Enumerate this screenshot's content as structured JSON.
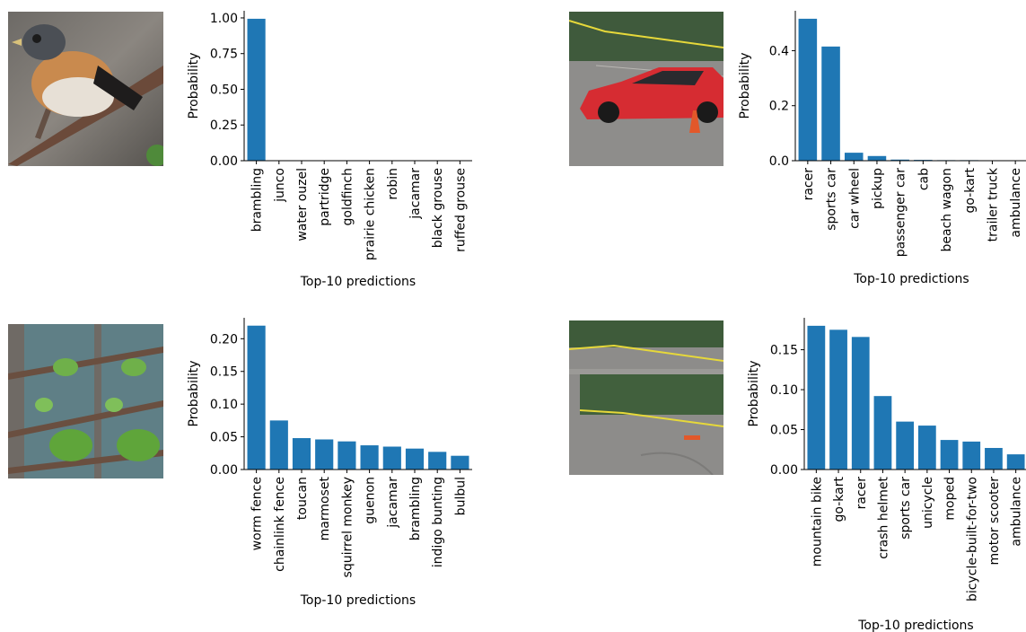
{
  "chart_data": [
    {
      "type": "bar",
      "color": "#1f77b4",
      "xlabel": "Top-10 predictions",
      "ylabel": "Probability",
      "ylim": [
        0,
        1.05
      ],
      "yticks": [
        "0.00",
        "0.25",
        "0.50",
        "0.75",
        "1.00"
      ],
      "categories": [
        "brambling",
        "junco",
        "water ouzel",
        "partridge",
        "goldfinch",
        "prairie chicken",
        "robin",
        "jacamar",
        "black grouse",
        "ruffed grouse"
      ],
      "values": [
        0.994,
        0.001,
        0.001,
        0.001,
        0.001,
        0.0005,
        0.0005,
        0.0005,
        0.0005,
        0.0005
      ]
    },
    {
      "type": "bar",
      "color": "#1f77b4",
      "xlabel": "Top-10 predictions",
      "ylabel": "Probability",
      "ylim": [
        0,
        0.545
      ],
      "yticks": [
        "0.0",
        "0.2",
        "0.4"
      ],
      "categories": [
        "racer",
        "sports car",
        "car wheel",
        "pickup",
        "passenger car",
        "cab",
        "beach wagon",
        "go-kart",
        "trailer truck",
        "ambulance"
      ],
      "values": [
        0.516,
        0.415,
        0.029,
        0.017,
        0.004,
        0.003,
        0.002,
        0.002,
        0.001,
        0.001
      ]
    },
    {
      "type": "bar",
      "color": "#1f77b4",
      "xlabel": "Top-10 predictions",
      "ylabel": "Probability",
      "ylim": [
        0,
        0.232
      ],
      "yticks": [
        "0.00",
        "0.05",
        "0.10",
        "0.15",
        "0.20"
      ],
      "categories": [
        "worm fence",
        "chainlink fence",
        "toucan",
        "marmoset",
        "squirrel monkey",
        "guenon",
        "jacamar",
        "brambling",
        "indigo bunting",
        "bulbul"
      ],
      "values": [
        0.22,
        0.075,
        0.048,
        0.046,
        0.043,
        0.037,
        0.035,
        0.032,
        0.027,
        0.021
      ]
    },
    {
      "type": "bar",
      "color": "#1f77b4",
      "xlabel": "Top-10 predictions",
      "ylabel": "Probability",
      "ylim": [
        0,
        0.19
      ],
      "yticks": [
        "0.00",
        "0.05",
        "0.10",
        "0.15"
      ],
      "categories": [
        "mountain bike",
        "go-kart",
        "racer",
        "crash helmet",
        "sports car",
        "unicycle",
        "moped",
        "bicycle-built-for-two",
        "motor scooter",
        "ambulance"
      ],
      "values": [
        0.18,
        0.175,
        0.166,
        0.092,
        0.06,
        0.055,
        0.037,
        0.035,
        0.027,
        0.019
      ]
    }
  ]
}
